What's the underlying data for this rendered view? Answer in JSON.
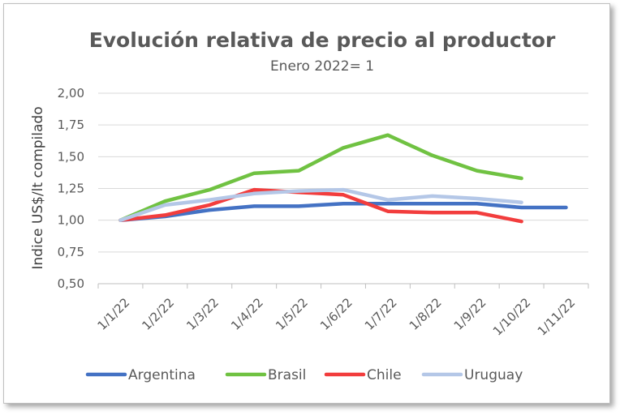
{
  "chart_data": {
    "type": "line",
    "title": "Evolución relativa de precio al productor",
    "subtitle": "Enero 2022= 1",
    "xlabel": "",
    "ylabel": "Indice US$/lt compilado",
    "ylim": [
      0.5,
      2.0
    ],
    "ytick_step": 0.25,
    "y_tick_labels": [
      "0,50",
      "0,75",
      "1,00",
      "1,25",
      "1,50",
      "1,75",
      "2,00"
    ],
    "categories": [
      "1/1/22",
      "1/2/22",
      "1/3/22",
      "1/4/22",
      "1/5/22",
      "1/6/22",
      "1/7/22",
      "1/8/22",
      "1/9/22",
      "1/10/22",
      "1/11/22"
    ],
    "grid": true,
    "legend_position": "bottom",
    "series": [
      {
        "name": "Argentina",
        "color": "#4472c4",
        "values": [
          1.0,
          1.03,
          1.08,
          1.11,
          1.11,
          1.13,
          1.13,
          1.13,
          1.13,
          1.1,
          1.1
        ]
      },
      {
        "name": "Brasil",
        "color": "#70c242",
        "values": [
          1.0,
          1.15,
          1.24,
          1.37,
          1.39,
          1.57,
          1.67,
          1.51,
          1.39,
          1.33,
          null
        ]
      },
      {
        "name": "Chile",
        "color": "#f23d3d",
        "values": [
          1.0,
          1.04,
          1.12,
          1.24,
          1.22,
          1.2,
          1.07,
          1.06,
          1.06,
          0.99,
          null
        ]
      },
      {
        "name": "Uruguay",
        "color": "#b4c7e7",
        "values": [
          1.0,
          1.12,
          1.16,
          1.21,
          1.23,
          1.24,
          1.16,
          1.19,
          1.17,
          1.14,
          null
        ]
      }
    ]
  }
}
